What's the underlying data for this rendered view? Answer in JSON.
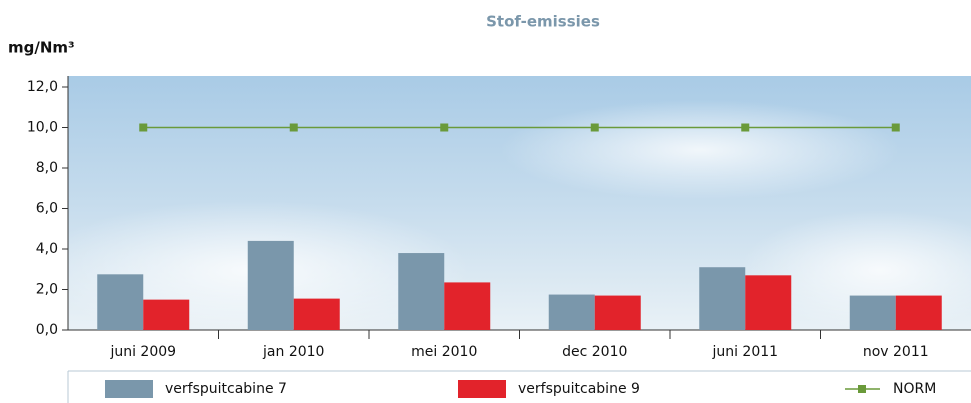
{
  "chart_data": {
    "type": "bar",
    "title": "Stof-emissies",
    "y_label": "mg/Nm³",
    "categories": [
      "juni 2009",
      "jan 2010",
      "mei 2010",
      "dec 2010",
      "juni 2011",
      "nov 2011"
    ],
    "series": [
      {
        "name": "verfspuitcabine 7",
        "color": "#7a97ab",
        "values": [
          2.75,
          4.4,
          3.8,
          1.75,
          3.1,
          1.7
        ]
      },
      {
        "name": "verfspuitcabine 9",
        "color": "#e2232b",
        "values": [
          1.5,
          1.55,
          2.35,
          1.7,
          2.7,
          1.7
        ]
      },
      {
        "name": "NORM",
        "color": "#6a9a3a",
        "type": "line",
        "values": [
          10,
          10,
          10,
          10,
          10,
          10
        ]
      }
    ],
    "ylim": [
      0,
      12
    ],
    "yticks": [
      {
        "value": 0,
        "label": "0,0"
      },
      {
        "value": 2,
        "label": "2,0"
      },
      {
        "value": 4,
        "label": "4,0"
      },
      {
        "value": 6,
        "label": "6,0"
      },
      {
        "value": 8,
        "label": "8,0"
      },
      {
        "value": 10,
        "label": "10,0"
      },
      {
        "value": 12,
        "label": "12,0"
      }
    ]
  }
}
